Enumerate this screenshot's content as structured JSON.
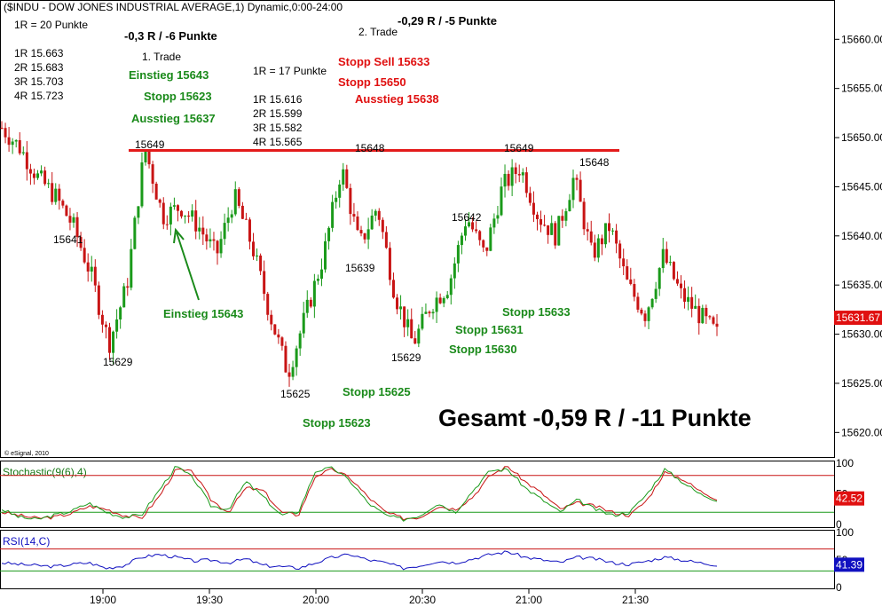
{
  "title": "($INDU - DOW JONES INDUSTRIAL AVERAGE,1) Dynamic,0:00-24:00",
  "colors": {
    "up": "#1a9a1a",
    "down": "#c81414",
    "resistance": "#e31b1b",
    "green_text": "#1a8a1a",
    "red_text": "#e01010",
    "rsi": "#1010c0",
    "price_box": "#e01010",
    "rsi_box": "#1010c0"
  },
  "watermark": "© eSignal, 2010",
  "chart_data": [
    {
      "type": "candlestick",
      "y_ticks": [
        "15660.00",
        "15655.00",
        "15650.00",
        "15645.00",
        "15640.00",
        "15635.00",
        "15630.00",
        "15625.00",
        "15620.00"
      ],
      "ylim": [
        15617.5,
        15664
      ],
      "x_ticks": [
        "19:00",
        "19:30",
        "20:00",
        "20:30",
        "21:00",
        "21:30"
      ],
      "last_price": "15631.67",
      "resistance_level": 15648.7,
      "price_path": [
        15651,
        15649,
        15646,
        15644,
        15641,
        15636,
        15629,
        15635,
        15649,
        15642,
        15643,
        15641,
        15638,
        15644,
        15639,
        15632,
        15626,
        15632,
        15638,
        15647,
        15639,
        15643,
        15634,
        15629,
        15633,
        15635,
        15642,
        15638,
        15645,
        15647,
        15642,
        15640,
        15646,
        15638,
        15641,
        15635,
        15632,
        15638,
        15634,
        15632,
        15630
      ]
    },
    {
      "type": "line",
      "title": "Stochastic(9(6),4)",
      "ylim": [
        0,
        100
      ],
      "y_ticks": [
        "100",
        "50",
        "0"
      ],
      "current": "42.52",
      "series": [
        {
          "color": "#c81414",
          "values": [
            20,
            15,
            10,
            12,
            18,
            30,
            25,
            15,
            10,
            45,
            90,
            85,
            40,
            20,
            60,
            55,
            20,
            15,
            80,
            90,
            75,
            45,
            20,
            10,
            12,
            30,
            25,
            45,
            80,
            95,
            70,
            50,
            25,
            35,
            30,
            20,
            15,
            40,
            85,
            75,
            55,
            42
          ]
        },
        {
          "color": "#1a9a1a",
          "values": [
            25,
            12,
            8,
            15,
            22,
            35,
            20,
            12,
            15,
            55,
            95,
            75,
            30,
            25,
            70,
            45,
            15,
            20,
            88,
            92,
            70,
            35,
            15,
            8,
            15,
            35,
            20,
            55,
            88,
            90,
            60,
            40,
            20,
            40,
            25,
            15,
            20,
            50,
            90,
            70,
            50,
            40
          ]
        }
      ]
    },
    {
      "type": "line",
      "title": "RSI(14,C)",
      "ylim": [
        0,
        100
      ],
      "y_ticks": [
        "100",
        "50",
        "0"
      ],
      "current": "41.39",
      "series": [
        {
          "color": "#1010c0",
          "values": [
            45,
            42,
            40,
            38,
            42,
            45,
            35,
            40,
            55,
            60,
            55,
            48,
            50,
            45,
            52,
            40,
            38,
            35,
            45,
            55,
            60,
            50,
            45,
            35,
            40,
            48,
            45,
            52,
            60,
            65,
            55,
            50,
            45,
            55,
            52,
            45,
            42,
            48,
            55,
            50,
            45,
            41
          ]
        }
      ]
    }
  ],
  "annotations": {
    "r20": "1R = 20 Punkte",
    "r20_levels": [
      "1R 15.663",
      "2R 15.683",
      "3R 15.703",
      "4R 15.723"
    ],
    "trade1_result": "-0,3 R  / -6 Punkte",
    "trade1": "1. Trade",
    "t1_entry": "Einstieg 15643",
    "t1_stop": "Stopp 15623",
    "t1_exit": "Ausstieg 15637",
    "r17": "1R = 17 Punkte",
    "r17_levels": [
      "1R 15.616",
      "2R 15.599",
      "3R 15.582",
      "4R 15.565"
    ],
    "trade2": "2. Trade",
    "trade2_result": "-0,29 R  / -5 Punkte",
    "t2_stop_sell": "Stopp Sell 15633",
    "t2_stop": "Stopp 15650",
    "t2_exit": "Ausstieg 15638",
    "entry_arrow": "Einstieg 15643",
    "stops": [
      "Stopp 15633",
      "Stopp 15631",
      "Stopp 15630",
      "Stopp 15625",
      "Stopp 15623"
    ],
    "total": "Gesamt -0,59 R  / -11 Punkte",
    "price_labels": [
      "15649",
      "15648",
      "15649",
      "15648",
      "15641",
      "15629",
      "15625",
      "15639",
      "15629",
      "15642"
    ]
  }
}
